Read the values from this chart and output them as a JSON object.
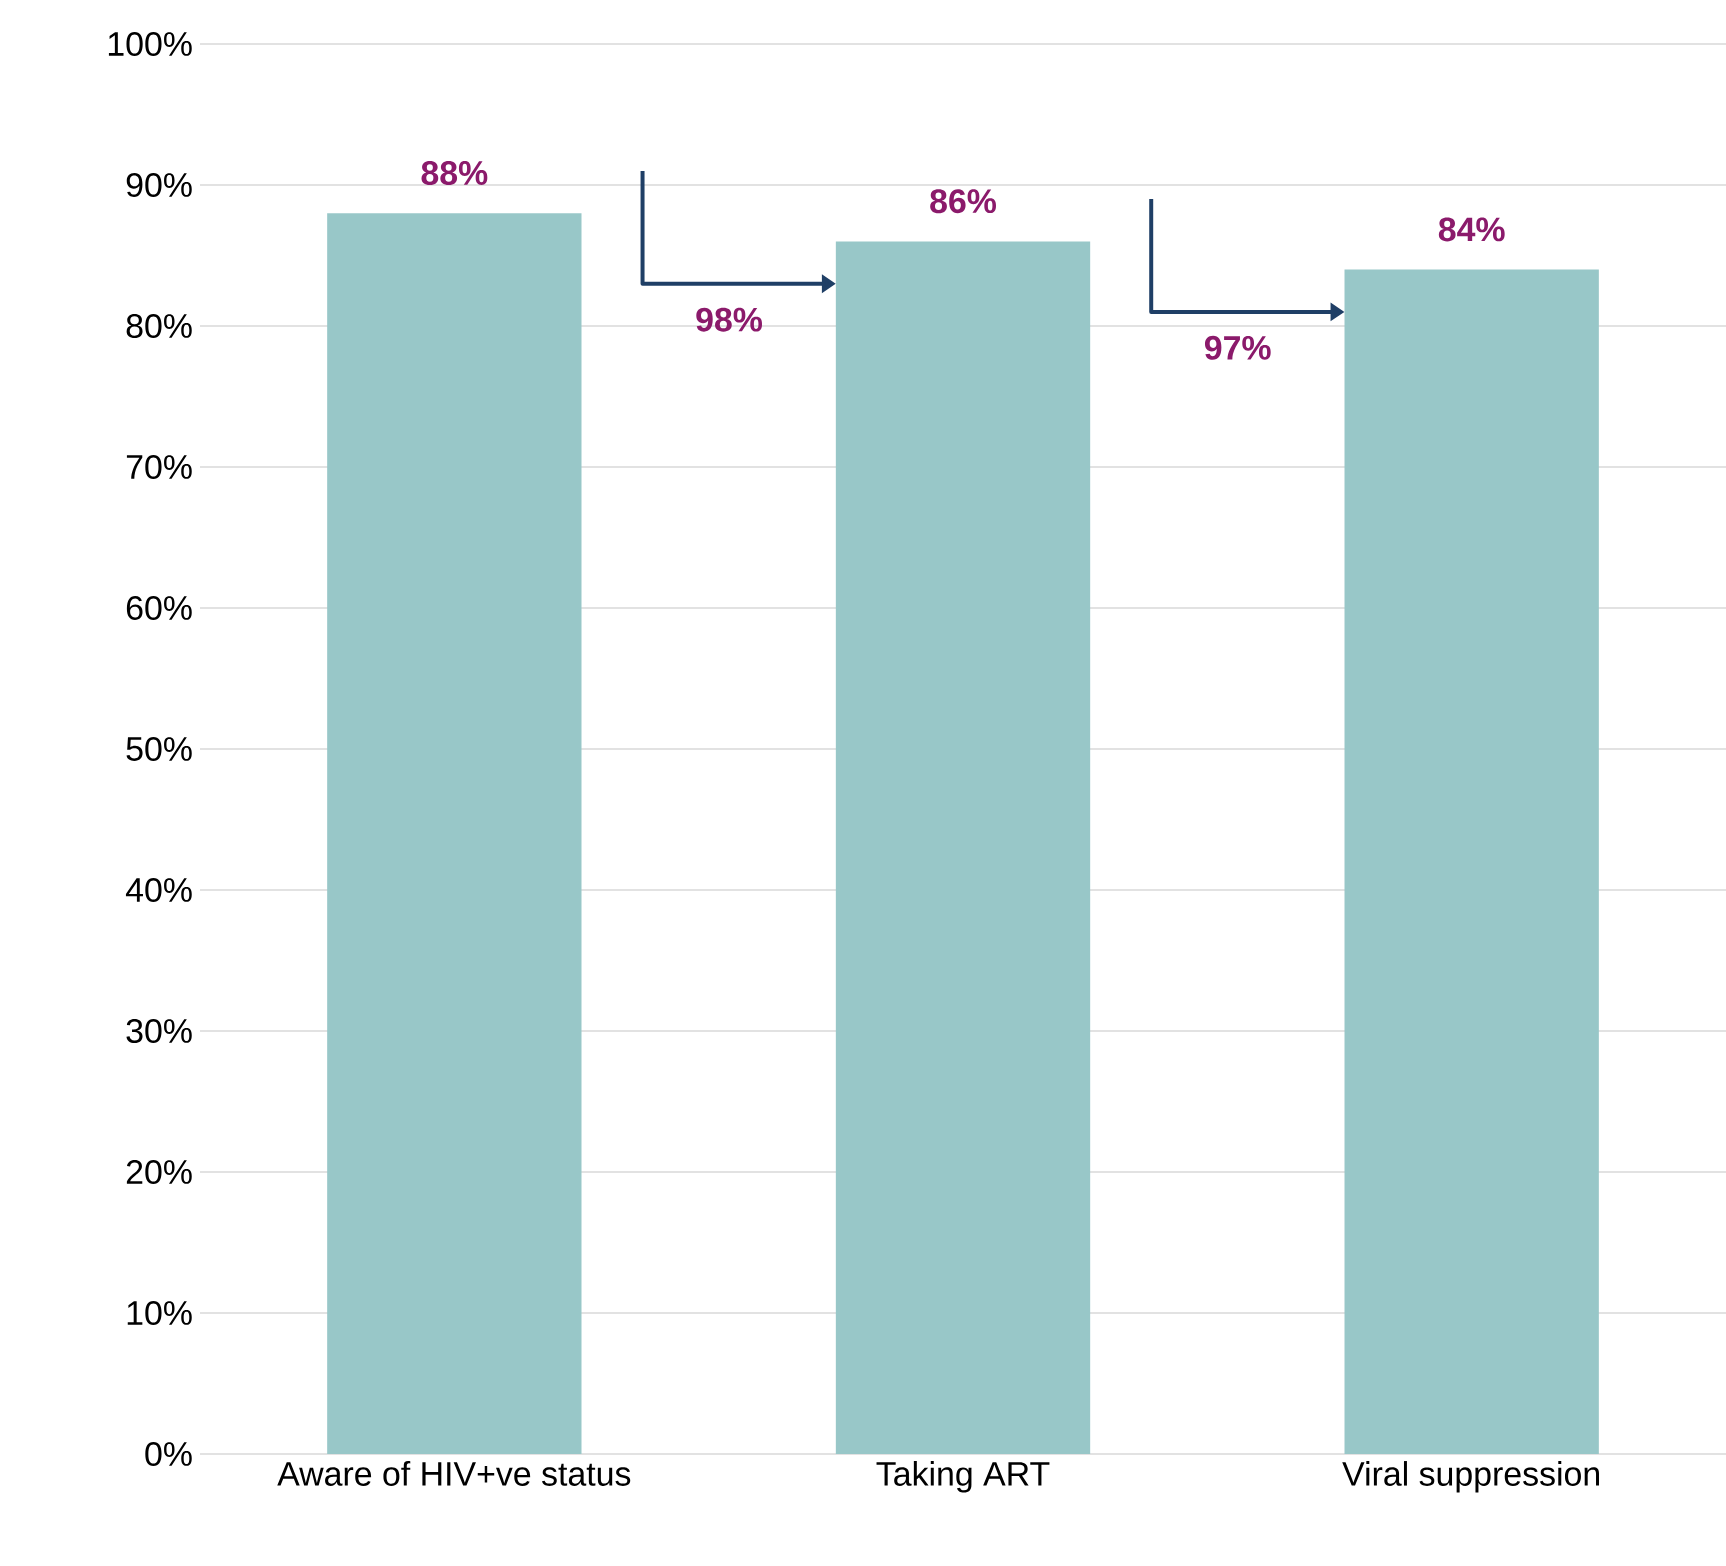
{
  "chart_data": {
    "type": "bar",
    "categories": [
      "Aware of HIV+ve status",
      "Taking ART",
      "Viral suppression"
    ],
    "values": [
      88,
      86,
      84
    ],
    "color": "#98c7c8",
    "value_labels": [
      "88%",
      "86%",
      "84%"
    ],
    "annotations": [
      "98%",
      "97%"
    ],
    "ylim": [
      0,
      100
    ],
    "yticks": [
      {
        "value": 0,
        "label": "0%"
      },
      {
        "value": 10,
        "label": "10%"
      },
      {
        "value": 20,
        "label": "20%"
      },
      {
        "value": 30,
        "label": "30%"
      },
      {
        "value": 40,
        "label": "40%"
      },
      {
        "value": 50,
        "label": "50%"
      },
      {
        "value": 60,
        "label": "60%"
      },
      {
        "value": 70,
        "label": "70%"
      },
      {
        "value": 80,
        "label": "80%"
      },
      {
        "value": 90,
        "label": "90%"
      },
      {
        "value": 100,
        "label": "100%"
      }
    ],
    "grid": "y"
  }
}
